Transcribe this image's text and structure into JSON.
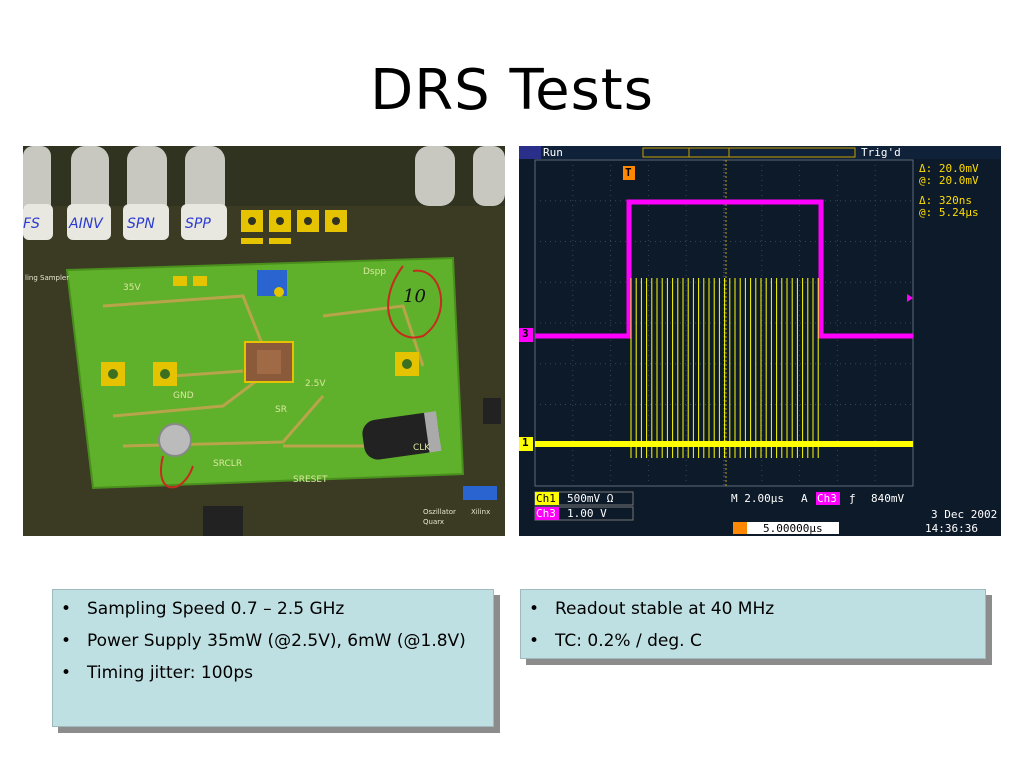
{
  "slide": {
    "title": "DRS Tests"
  },
  "photo": {
    "labels": [
      "FS",
      "AINV",
      "SPN",
      "SPP",
      "10"
    ],
    "board_text": [
      "35V",
      "GND",
      "SR",
      "SRCLR",
      "SRESET",
      "CLK",
      "2.5V",
      "Dspp"
    ],
    "side_text": [
      "Oszillator",
      "Quarx",
      "Xilinx",
      "ling Sampler"
    ]
  },
  "scope": {
    "run_status": "Run",
    "trig_status": "Trig'd",
    "delta_v": "Δ:  20.0mV",
    "at_v": "@:  20.0mV",
    "delta_t": "Δ:   320ns",
    "at_t": "@:   5.24µs",
    "ch1_marker": "1",
    "ch3_marker": "3",
    "trigger_marker": "T",
    "ch1_label": "Ch1",
    "ch1_scale": "500mV Ω",
    "ch3_label": "Ch3",
    "ch3_scale": "1.00 V",
    "timebase": "M 2.00µs",
    "trigger_info_a": "A",
    "trigger_info_ch": "Ch3",
    "trigger_info_slope": "ƒ",
    "trigger_level": "840mV",
    "trigger_pos": "5.00000µs",
    "date": "3 Dec 2002",
    "time": "14:36:36",
    "colors": {
      "ch1": "#ffff00",
      "ch3": "#ff00ff",
      "grid": "#5a6a7a"
    }
  },
  "bullets_left": [
    "Sampling Speed 0.7 – 2.5 GHz",
    "Power Supply 35mW (@2.5V), 6mW (@1.8V)",
    "Timing jitter: 100ps"
  ],
  "bullets_right": [
    "Readout stable at 40 MHz",
    "TC: 0.2% / deg. C"
  ]
}
